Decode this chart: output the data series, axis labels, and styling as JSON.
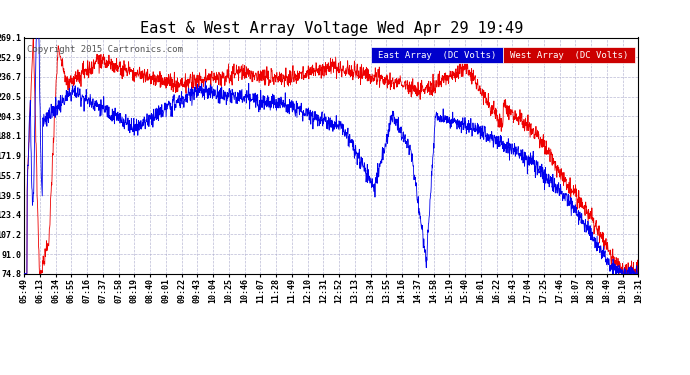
{
  "title": "East & West Array Voltage Wed Apr 29 19:49",
  "copyright": "Copyright 2015 Cartronics.com",
  "legend_east": "East Array  (DC Volts)",
  "legend_west": "West Array  (DC Volts)",
  "east_color": "#0000ee",
  "west_color": "#ee0000",
  "legend_east_bg": "#0000cc",
  "legend_west_bg": "#cc0000",
  "background_color": "#ffffff",
  "grid_color": "#aaaacc",
  "ylim": [
    74.8,
    269.1
  ],
  "yticks": [
    74.8,
    91.0,
    107.2,
    123.4,
    139.5,
    155.7,
    171.9,
    188.1,
    204.3,
    220.5,
    236.7,
    252.9,
    269.1
  ],
  "xtick_labels": [
    "05:49",
    "06:13",
    "06:34",
    "06:55",
    "07:16",
    "07:37",
    "07:58",
    "08:19",
    "08:40",
    "09:01",
    "09:22",
    "09:43",
    "10:04",
    "10:25",
    "10:46",
    "11:07",
    "11:28",
    "11:49",
    "12:10",
    "12:31",
    "12:52",
    "13:13",
    "13:34",
    "13:55",
    "14:16",
    "14:37",
    "14:58",
    "15:19",
    "15:40",
    "16:01",
    "16:22",
    "16:43",
    "17:04",
    "17:25",
    "17:46",
    "18:07",
    "18:28",
    "18:49",
    "19:10",
    "19:31"
  ],
  "title_fontsize": 11,
  "tick_fontsize": 6,
  "copyright_fontsize": 6.5,
  "legend_fontsize": 6.5
}
